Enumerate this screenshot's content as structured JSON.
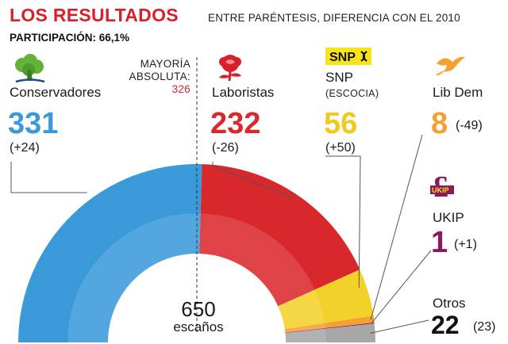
{
  "header": {
    "title": "LOS RESULTADOS",
    "subtitle": "ENTRE PARÉNTESIS, DIFERENCIA CON EL 2010",
    "turnout": "PARTICIPACIÓN: 66,1%"
  },
  "majority": {
    "line1": "MAYORÍA",
    "line2": "ABSOLUTA:",
    "value": "326"
  },
  "center": {
    "total": "650",
    "label": "escaños"
  },
  "parties": {
    "con": {
      "name": "Conservadores",
      "seats": "331",
      "diff": "(+24)",
      "color": "#3a9ad9",
      "icon": "oak-tree-icon"
    },
    "lab": {
      "name": "Laboristas",
      "seats": "232",
      "diff": "(-26)",
      "color": "#d8282c",
      "icon": "red-rose-icon"
    },
    "snp": {
      "name": "SNP",
      "region": "(ESCOCIA)",
      "logo": "SNP",
      "seats": "56",
      "diff": "(+50)",
      "color": "#f2d22a",
      "icon": "snp-logo-icon"
    },
    "lib": {
      "name": "Lib Dem",
      "seats": "8",
      "diff": "(-49)",
      "color": "#f5a033",
      "icon": "bird-icon"
    },
    "ukip": {
      "name": "UKIP",
      "logo": "UKIP",
      "seats": "1",
      "diff": "(+1)",
      "color": "#8a1a5c",
      "icon": "ukip-pound-icon"
    },
    "oth": {
      "name": "Otros",
      "seats": "22",
      "diff": "(23)",
      "color": "#a7a7a7"
    }
  },
  "chart_data": {
    "type": "pie",
    "variant": "parliament-half-donut",
    "total": 650,
    "majority": 326,
    "categories": [
      "Conservadores",
      "Laboristas",
      "SNP",
      "Lib Dem",
      "UKIP",
      "Otros"
    ],
    "values": [
      331,
      232,
      56,
      8,
      1,
      22
    ],
    "changes": [
      24,
      -26,
      50,
      -49,
      1,
      23
    ],
    "colors": [
      "#3a9ad9",
      "#d8282c",
      "#f2d22a",
      "#f5a033",
      "#8a1a5c",
      "#a7a7a7"
    ]
  }
}
